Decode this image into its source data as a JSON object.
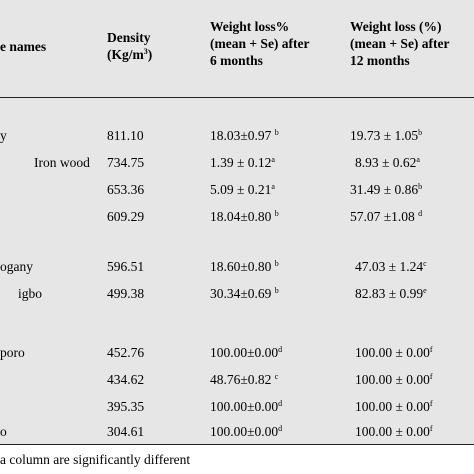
{
  "header": {
    "col_name": "e names",
    "col_density": "Density",
    "col_density_unit_base": "(Kg/m",
    "col_density_unit_exp": "3",
    "col_density_unit_end": ")",
    "col_w6_l1": "Weight loss%",
    "col_w6_l2": "(mean + Se) after",
    "col_w6_l3": "6 months",
    "col_w12_l1": "Weight loss (%)",
    "col_w12_l2": "(mean + Se) after",
    "col_w12_l3": "12 months"
  },
  "rows": [
    {
      "name": "y",
      "density": "811.10",
      "w6": "18.03±0.97",
      "w6_sup": "b",
      "w12": "19.73 ± 1.05",
      "w12_sup": "b"
    },
    {
      "name": "Iron wood",
      "density": "734.75",
      "w6": "1.39 ± 0.12",
      "w6_sup": "a",
      "w12": "8.93 ± 0.62",
      "w12_sup": "a"
    },
    {
      "name": "",
      "density": "653.36",
      "w6": "5.09 ± 0.21",
      "w6_sup": "a",
      "w12": "31.49 ± 0.86",
      "w12_sup": "b"
    },
    {
      "name": "",
      "density": "609.29",
      "w6": "18.04±0.80",
      "w6_sup": "b",
      "w12": "57.07 ±1.08",
      "w12_sup": "d"
    },
    {
      "name": "ogany",
      "density": "596.51",
      "w6": "18.60±0.80",
      "w6_sup": "b",
      "w12": "47.03 ± 1.24",
      "w12_sup": "c"
    },
    {
      "name": "igbo",
      "density": "499.38",
      "w6": "30.34±0.69",
      "w6_sup": "b",
      "w12": "82.83 ± 0.99",
      "w12_sup": "e"
    },
    {
      "name": "poro",
      "density": "452.76",
      "w6": "100.00±0.00",
      "w6_sup": "d",
      "w12": "100.00 ± 0.00",
      "w12_sup": "f"
    },
    {
      "name": "",
      "density": "434.62",
      "w6": "48.76±0.82",
      "w6_sup": "c",
      "w12": "100.00 ± 0.00",
      "w12_sup": "f"
    },
    {
      "name": "",
      "density": "395.35",
      "w6": "100.00±0.00",
      "w6_sup": "d",
      "w12": "100.00 ± 0.00",
      "w12_sup": "f"
    },
    {
      "name": "o",
      "density": "304.61",
      "w6": "100.00±0.00",
      "w6_sup": "d",
      "w12": "100.00 ± 0.00",
      "w12_sup": "f"
    }
  ],
  "footnote": "a column  are significantly different"
}
